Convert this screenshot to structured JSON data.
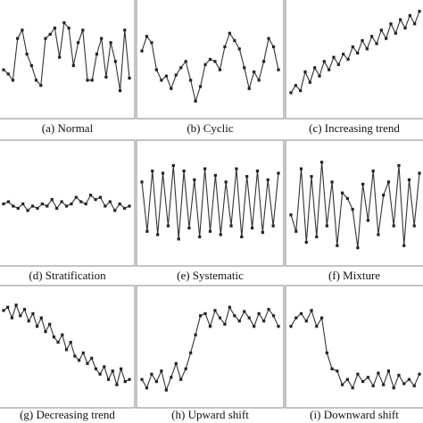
{
  "chart_data": [
    {
      "type": "line",
      "caption": "(a) Normal",
      "ylim": [
        0,
        100
      ],
      "values": [
        40,
        36,
        30,
        70,
        78,
        55,
        44,
        30,
        25,
        70,
        74,
        80,
        52,
        85,
        80,
        44,
        66,
        78,
        30,
        30,
        55,
        70,
        33,
        66,
        48,
        20,
        78,
        32
      ]
    },
    {
      "type": "line",
      "caption": "(b) Cyclic",
      "ylim": [
        0,
        100
      ],
      "values": [
        58,
        72,
        66,
        40,
        30,
        34,
        22,
        35,
        42,
        48,
        30,
        10,
        24,
        45,
        50,
        48,
        40,
        62,
        75,
        68,
        60,
        42,
        22,
        38,
        30,
        48,
        70,
        62,
        40
      ]
    },
    {
      "type": "line",
      "caption": "(c) Increasing trend",
      "ylim": [
        0,
        100
      ],
      "values": [
        18,
        25,
        20,
        38,
        28,
        42,
        34,
        48,
        40,
        52,
        45,
        55,
        50,
        62,
        56,
        68,
        60,
        72,
        65,
        78,
        70,
        84,
        75,
        88,
        80,
        92,
        84,
        96
      ]
    },
    {
      "type": "line",
      "caption": "(d) Stratification",
      "ylim": [
        0,
        100
      ],
      "values": [
        50,
        52,
        48,
        46,
        50,
        44,
        48,
        46,
        50,
        48,
        54,
        46,
        52,
        48,
        50,
        56,
        52,
        50,
        58,
        54,
        56,
        48,
        52,
        44,
        50,
        46,
        48
      ]
    },
    {
      "type": "line",
      "caption": "(e) Systematic",
      "ylim": [
        0,
        100
      ],
      "values": [
        70,
        25,
        80,
        22,
        78,
        30,
        85,
        18,
        80,
        28,
        72,
        20,
        82,
        25,
        76,
        22,
        70,
        30,
        82,
        20,
        75,
        28,
        80,
        24,
        72,
        30,
        78
      ]
    },
    {
      "type": "line",
      "caption": "(f) Mixture",
      "ylim": [
        0,
        100
      ],
      "values": [
        40,
        25,
        82,
        15,
        75,
        20,
        88,
        30,
        70,
        12,
        60,
        55,
        45,
        10,
        68,
        35,
        80,
        22,
        58,
        70,
        30,
        85,
        12,
        72,
        30,
        78
      ]
    },
    {
      "type": "line",
      "caption": "(g) Decreasing trend",
      "ylim": [
        0,
        100
      ],
      "values": [
        85,
        88,
        78,
        90,
        80,
        86,
        75,
        82,
        70,
        78,
        65,
        72,
        60,
        55,
        62,
        48,
        55,
        42,
        38,
        45,
        35,
        40,
        30,
        25,
        32,
        20,
        28,
        15,
        30,
        18,
        20
      ]
    },
    {
      "type": "line",
      "caption": "(h) Upward shift",
      "ylim": [
        0,
        100
      ],
      "values": [
        20,
        12,
        25,
        18,
        28,
        10,
        22,
        35,
        20,
        30,
        45,
        62,
        80,
        82,
        70,
        85,
        78,
        72,
        88,
        80,
        75,
        84,
        78,
        70,
        82,
        75,
        86,
        80,
        70
      ]
    },
    {
      "type": "line",
      "caption": "(i) Downward shift",
      "ylim": [
        0,
        100
      ],
      "values": [
        70,
        78,
        82,
        75,
        85,
        70,
        78,
        45,
        30,
        28,
        15,
        20,
        12,
        25,
        18,
        22,
        14,
        26,
        15,
        28,
        12,
        24,
        16,
        20,
        14,
        25
      ]
    }
  ]
}
